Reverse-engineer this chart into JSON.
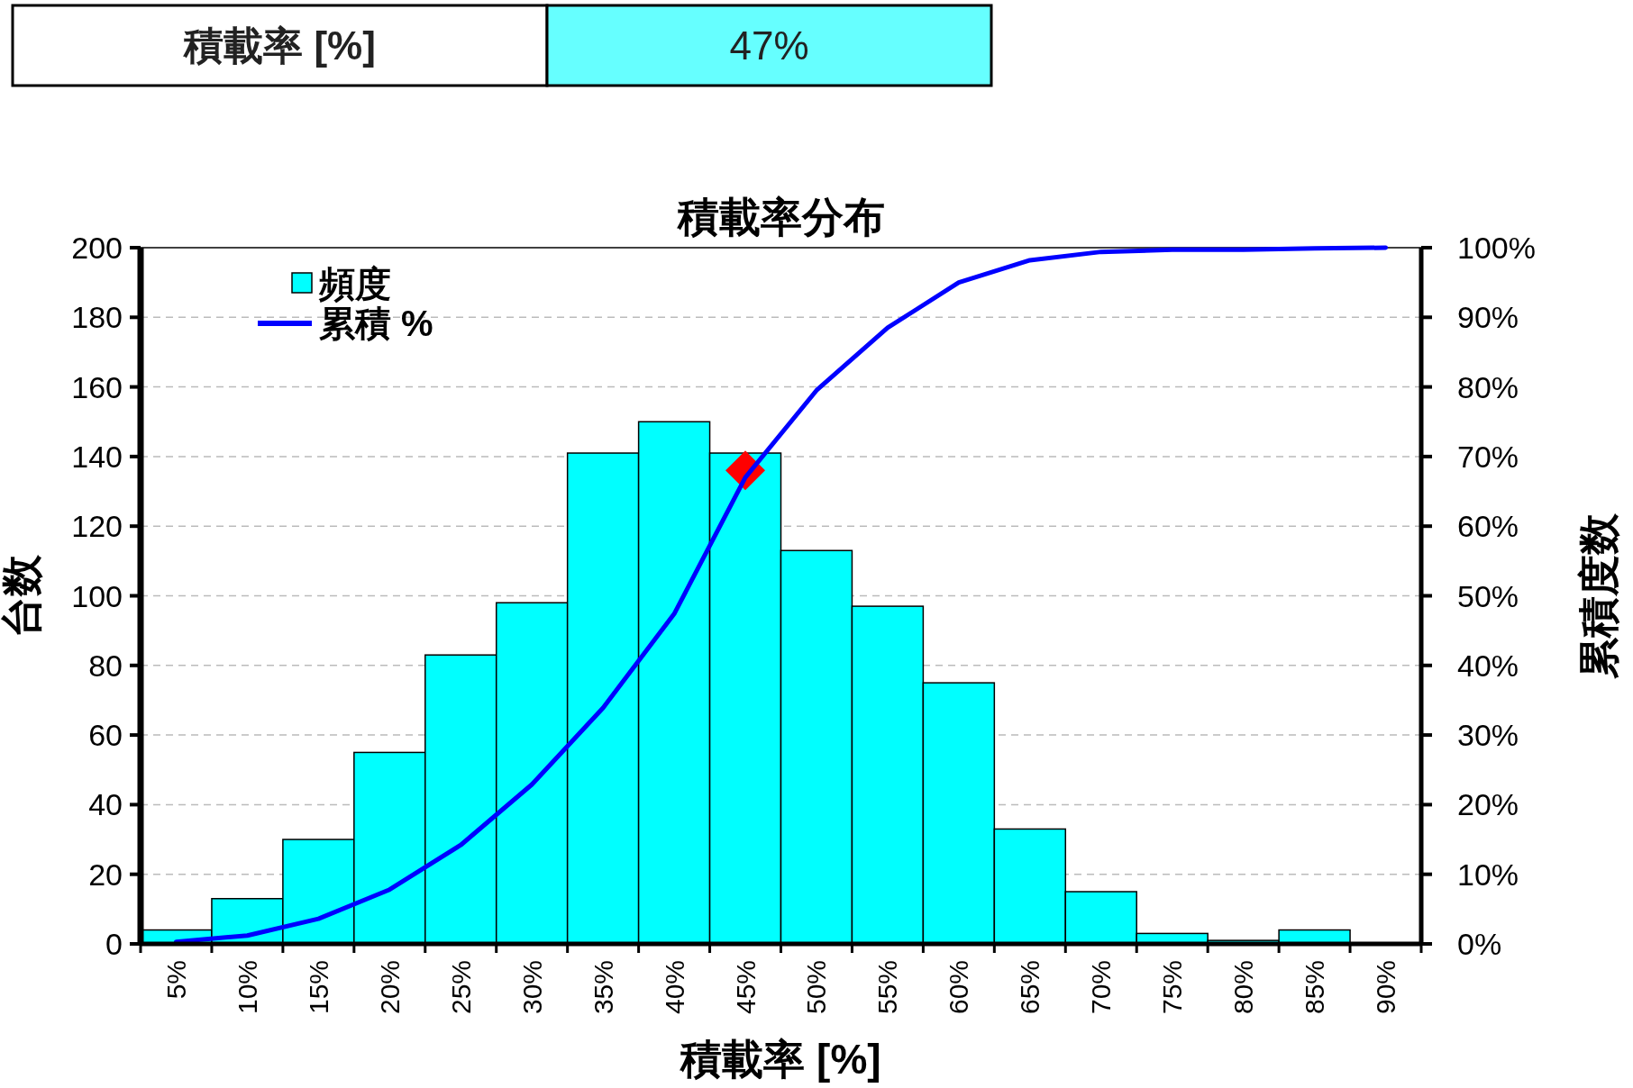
{
  "chart_data": {
    "type": "bar",
    "title": "積載率分布",
    "xlabel": "積載率 [%]",
    "ylabel": "台数",
    "y2label": "累積度数",
    "annotations": [
      "積載率 [%]",
      "47%"
    ],
    "categories": [
      "5%",
      "10%",
      "15%",
      "20%",
      "25%",
      "30%",
      "35%",
      "40%",
      "45%",
      "50%",
      "55%",
      "60%",
      "65%",
      "70%",
      "75%",
      "80%",
      "85%",
      "90%"
    ],
    "series": [
      {
        "name": "頻度",
        "color": "#00ffff",
        "values": [
          4,
          13,
          30,
          55,
          83,
          98,
          141,
          150,
          141,
          113,
          97,
          75,
          33,
          15,
          3,
          1,
          4,
          0
        ]
      },
      {
        "name": "累積 %",
        "type": "line",
        "axis": "y2",
        "color": "#0000ff",
        "values": [
          0.3,
          1.2,
          3.6,
          7.8,
          14.2,
          22.9,
          33.9,
          47.4,
          67,
          79.5,
          88.5,
          95,
          98.2,
          99.4,
          99.7,
          99.7,
          99.9,
          100
        ]
      },
      {
        "type": "scatter",
        "axis": "y2",
        "color": "#ff0000",
        "marker": "diamond",
        "x": [
          "45%"
        ],
        "values": [
          68
        ]
      }
    ],
    "ylim": [
      0,
      200
    ],
    "yticks": [
      0,
      20,
      40,
      60,
      80,
      100,
      120,
      140,
      160,
      180,
      200
    ],
    "y2lim": [
      0,
      100
    ],
    "y2ticks": [
      {
        "value": 0,
        "label": "0%"
      },
      {
        "value": 10,
        "label": "10%"
      },
      {
        "value": 20,
        "label": "20%"
      },
      {
        "value": 30,
        "label": "30%"
      },
      {
        "value": 40,
        "label": "40%"
      },
      {
        "value": 50,
        "label": "50%"
      },
      {
        "value": 60,
        "label": "60%"
      },
      {
        "value": 70,
        "label": "70%"
      },
      {
        "value": 80,
        "label": "80%"
      },
      {
        "value": 90,
        "label": "90%"
      },
      {
        "value": 100,
        "label": "100%"
      }
    ],
    "grid": "y",
    "legend": "top left"
  }
}
